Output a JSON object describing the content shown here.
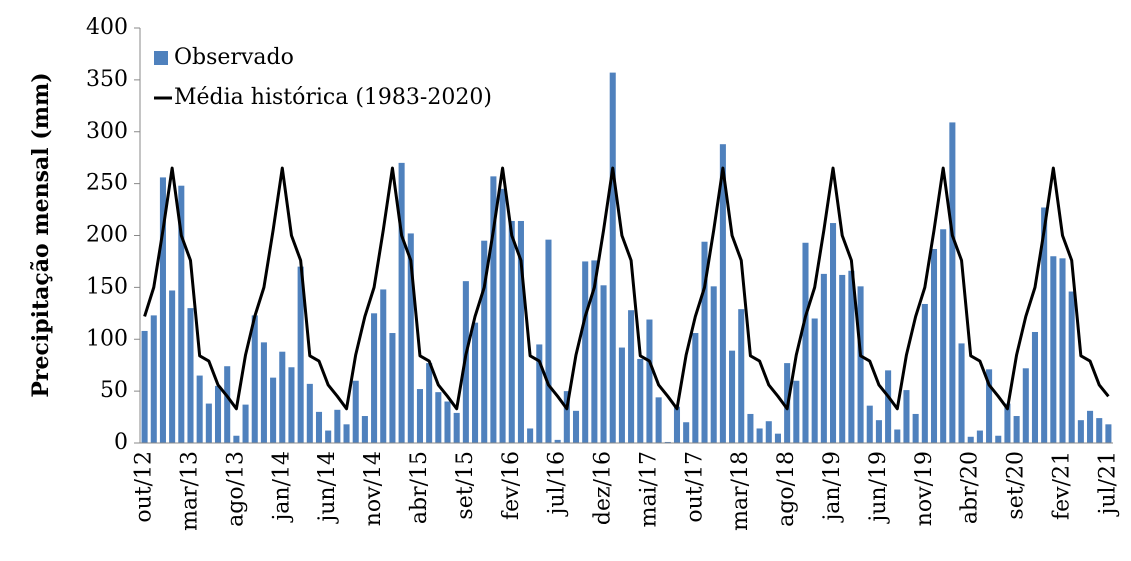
{
  "chart_data": {
    "type": "bar-line",
    "y_label": "Precipitação mensal (mm)",
    "categories": [
      "out/12",
      null,
      null,
      null,
      null,
      "mar/13",
      null,
      null,
      null,
      null,
      "ago/13",
      null,
      null,
      null,
      null,
      "jan/14",
      null,
      null,
      null,
      null,
      "jun/14",
      null,
      null,
      null,
      null,
      "nov/14",
      null,
      null,
      null,
      null,
      "abr/15",
      null,
      null,
      null,
      null,
      "set/15",
      null,
      null,
      null,
      null,
      "fev/16",
      null,
      null,
      null,
      null,
      "jul/16",
      null,
      null,
      null,
      null,
      "dez/16",
      null,
      null,
      null,
      null,
      "mai/17",
      null,
      null,
      null,
      null,
      "out/17",
      null,
      null,
      null,
      null,
      "mar/18",
      null,
      null,
      null,
      null,
      "ago/18",
      null,
      null,
      null,
      null,
      "jan/19",
      null,
      null,
      null,
      null,
      "jun/19",
      null,
      null,
      null,
      null,
      "nov/19",
      null,
      null,
      null,
      null,
      "abr/20",
      null,
      null,
      null,
      null,
      "set/20",
      null,
      null,
      null,
      null,
      "fev/21",
      null,
      null,
      null,
      null,
      "jul/21"
    ],
    "series": [
      {
        "name": "Observado",
        "type": "bar",
        "color": "#4f81bd",
        "values": [
          108,
          123,
          256,
          147,
          248,
          130,
          65,
          38,
          55,
          74,
          7,
          37,
          123,
          97,
          63,
          88,
          73,
          170,
          57,
          30,
          12,
          32,
          18,
          60,
          26,
          125,
          148,
          106,
          270,
          202,
          52,
          77,
          49,
          40,
          29,
          156,
          116,
          195,
          257,
          245,
          214,
          214,
          14,
          95,
          196,
          3,
          50,
          31,
          175,
          176,
          152,
          357,
          92,
          128,
          81,
          119,
          44,
          1,
          35,
          20,
          106,
          194,
          151,
          288,
          89,
          129,
          28,
          14,
          21,
          9,
          77,
          60,
          193,
          120,
          163,
          212,
          162,
          166,
          151,
          36,
          22,
          70,
          13,
          51,
          28,
          134,
          187,
          206,
          309,
          96,
          6,
          12,
          71,
          7,
          38,
          26,
          72,
          107,
          227,
          180,
          178,
          146,
          22,
          31,
          24,
          18
        ]
      },
      {
        "name": "Média histórica (1983-2020)",
        "type": "line",
        "color": "#000000",
        "values": [
          122,
          150,
          205,
          265,
          200,
          176,
          84,
          79,
          56,
          45,
          33,
          85,
          122,
          150,
          205,
          265,
          200,
          176,
          84,
          79,
          56,
          45,
          33,
          85,
          122,
          150,
          205,
          265,
          200,
          176,
          84,
          79,
          56,
          45,
          33,
          85,
          122,
          150,
          205,
          265,
          200,
          176,
          84,
          79,
          56,
          45,
          33,
          85,
          122,
          150,
          205,
          265,
          200,
          176,
          84,
          79,
          56,
          45,
          33,
          85,
          122,
          150,
          205,
          265,
          200,
          176,
          84,
          79,
          56,
          45,
          33,
          85,
          122,
          150,
          205,
          265,
          200,
          176,
          84,
          79,
          56,
          45,
          33,
          85,
          122,
          150,
          205,
          265,
          200,
          176,
          84,
          79,
          56,
          45,
          33,
          85,
          122,
          150,
          205,
          265,
          200,
          176,
          84,
          79,
          56,
          45
        ]
      }
    ],
    "ylim": [
      0,
      400
    ],
    "yticks": [
      0,
      50,
      100,
      150,
      200,
      250,
      300,
      350,
      400
    ],
    "legend": "upper left"
  }
}
